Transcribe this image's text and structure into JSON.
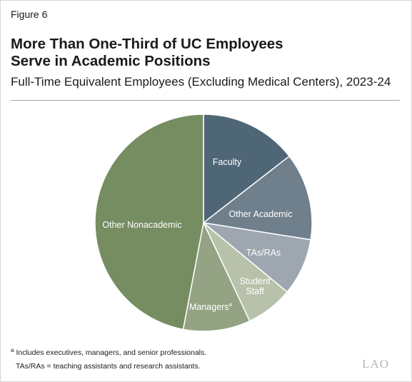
{
  "header": {
    "figure_label": "Figure 6",
    "title_line1": "More Than One-Third of UC Employees",
    "title_line2": "Serve in Academic Positions",
    "subtitle": "Full-Time Equivalent Employees (Excluding Medical Centers), 2023-24"
  },
  "chart_data": {
    "type": "pie",
    "title": "More Than One-Third of UC Employees Serve in Academic Positions",
    "subtitle": "Full-Time Equivalent Employees (Excluding Medical Centers), 2023-24",
    "start": "12 o'clock",
    "direction": "clockwise",
    "slices": [
      {
        "label": "Faculty",
        "value": 14.5,
        "color": "#4f6677",
        "text_color": "#ffffff"
      },
      {
        "label": "Other Academic",
        "value": 13.0,
        "color": "#6f7f8c",
        "text_color": "#ffffff"
      },
      {
        "label": "TAs/RAs",
        "value": 8.5,
        "color": "#9ea6b0",
        "text_color": "#ffffff"
      },
      {
        "label": "Student Staff",
        "value": 7.0,
        "color": "#b8c2aa",
        "text_color": "#ffffff",
        "label_lines": [
          "Student",
          "Staff"
        ]
      },
      {
        "label": "Managers",
        "value": 10.0,
        "color": "#94a383",
        "text_color": "#ffffff",
        "superscript": "a"
      },
      {
        "label": "Other Nonacademic",
        "value": 47.0,
        "color": "#768d61",
        "text_color": "#ffffff"
      }
    ]
  },
  "footnotes": {
    "marker": "a",
    "note_a": "Includes executives, managers, and senior professionals.",
    "abbreviation": "TAs/RAs = teaching assistants and research assistants."
  },
  "logo_text": "LAO"
}
